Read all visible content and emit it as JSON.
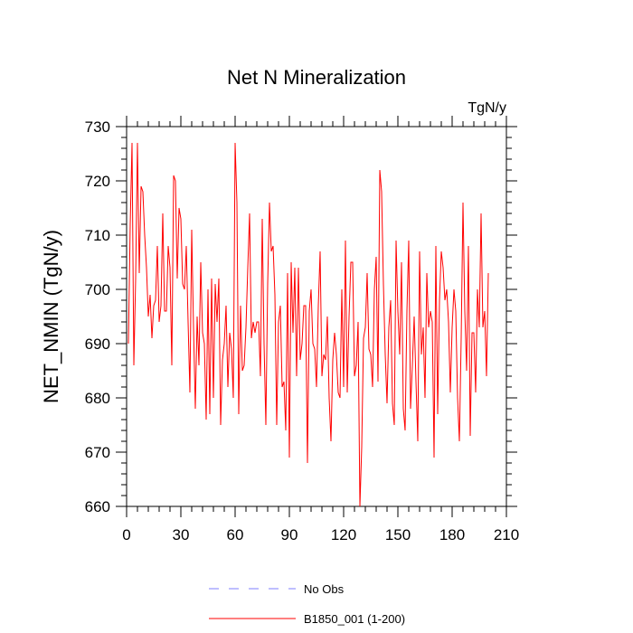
{
  "chart_data": {
    "type": "line",
    "title": "Net N Mineralization",
    "units": "TgN/y",
    "xlabel": "",
    "ylabel": "NET_NMIN  (TgN/y)",
    "xlim": [
      0,
      210
    ],
    "ylim": [
      660,
      730
    ],
    "xticks": [
      0,
      30,
      60,
      90,
      120,
      150,
      180,
      210
    ],
    "yticks": [
      660,
      670,
      680,
      690,
      700,
      710,
      720,
      730
    ],
    "grid": false,
    "legend_position": "bottom-center",
    "series": [
      {
        "name": "No Obs",
        "color": "#7f7fff",
        "style": "dashed",
        "x": [],
        "values": []
      },
      {
        "name": "B1850_001 (1-200)",
        "color": "#ff0000",
        "style": "solid",
        "x": [
          1,
          2,
          3,
          4,
          5,
          6,
          7,
          8,
          9,
          10,
          11,
          12,
          13,
          14,
          15,
          16,
          17,
          18,
          19,
          20,
          21,
          22,
          23,
          24,
          25,
          26,
          27,
          28,
          29,
          30,
          31,
          32,
          33,
          34,
          35,
          36,
          37,
          38,
          39,
          40,
          41,
          42,
          43,
          44,
          45,
          46,
          47,
          48,
          49,
          50,
          51,
          52,
          53,
          54,
          55,
          56,
          57,
          58,
          59,
          60,
          61,
          62,
          63,
          64,
          65,
          66,
          67,
          68,
          69,
          70,
          71,
          72,
          73,
          74,
          75,
          76,
          77,
          78,
          79,
          80,
          81,
          82,
          83,
          84,
          85,
          86,
          87,
          88,
          89,
          90,
          91,
          92,
          93,
          94,
          95,
          96,
          97,
          98,
          99,
          100,
          101,
          102,
          103,
          104,
          105,
          106,
          107,
          108,
          109,
          110,
          111,
          112,
          113,
          114,
          115,
          116,
          117,
          118,
          119,
          120,
          121,
          122,
          123,
          124,
          125,
          126,
          127,
          128,
          129,
          130,
          131,
          132,
          133,
          134,
          135,
          136,
          137,
          138,
          139,
          140,
          141,
          142,
          143,
          144,
          145,
          146,
          147,
          148,
          149,
          150,
          151,
          152,
          153,
          154,
          155,
          156,
          157,
          158,
          159,
          160,
          161,
          162,
          163,
          164,
          165,
          166,
          167,
          168,
          169,
          170,
          171,
          172,
          173,
          174,
          175,
          176,
          177,
          178,
          179,
          180,
          181,
          182,
          183,
          184,
          185,
          186,
          187,
          188,
          189,
          190,
          191,
          192,
          193,
          194,
          195,
          196,
          197,
          198,
          199,
          200
        ],
        "values": [
          690,
          712,
          727,
          686,
          702,
          727,
          703,
          719,
          718,
          710,
          704,
          695,
          699,
          691,
          697,
          698,
          708,
          694,
          697,
          714,
          696,
          696,
          708,
          704,
          686,
          721,
          720,
          702,
          715,
          713,
          701,
          700,
          708,
          694,
          681,
          711,
          693,
          678,
          695,
          686,
          705,
          692,
          690,
          676,
          700,
          677,
          702,
          680,
          701,
          694,
          702,
          675,
          687,
          690,
          697,
          682,
          692,
          689,
          680,
          727,
          716,
          677,
          697,
          685,
          686,
          693,
          704,
          714,
          691,
          694,
          692,
          694,
          694,
          684,
          713,
          690,
          675,
          701,
          716,
          707,
          708,
          699,
          675,
          694,
          697,
          682,
          683,
          674,
          703,
          669,
          705,
          692,
          704,
          684,
          704,
          687,
          690,
          697,
          697,
          668,
          696,
          700,
          690,
          689,
          682,
          697,
          707,
          684,
          688,
          687,
          695,
          680,
          672,
          687,
          692,
          688,
          681,
          680,
          700,
          682,
          709,
          681,
          695,
          705,
          705,
          684,
          686,
          694,
          660,
          671,
          691,
          693,
          703,
          689,
          688,
          682,
          700,
          706,
          683,
          722,
          718,
          701,
          688,
          679,
          693,
          698,
          679,
          675,
          709,
          696,
          688,
          705,
          678,
          674,
          696,
          709,
          678,
          686,
          695,
          683,
          672,
          707,
          688,
          693,
          680,
          703,
          693,
          696,
          694,
          669,
          708,
          677,
          698,
          707,
          704,
          698,
          700,
          694,
          681,
          693,
          700,
          696,
          680,
          672,
          691,
          716,
          696,
          685,
          708,
          673,
          692,
          692,
          681,
          700,
          693,
          714,
          693,
          696,
          684,
          703
        ]
      }
    ]
  }
}
